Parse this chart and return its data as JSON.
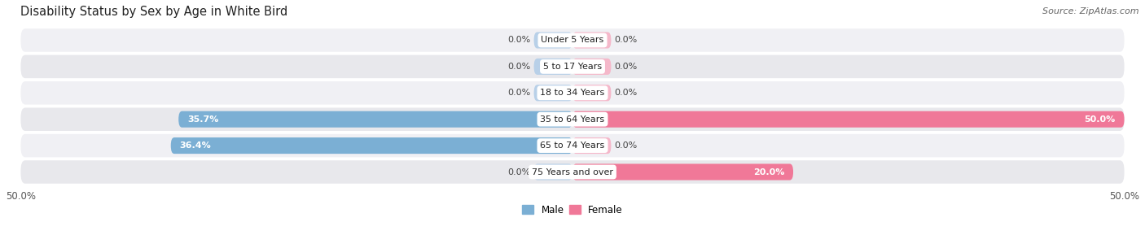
{
  "title": "Disability Status by Sex by Age in White Bird",
  "source": "Source: ZipAtlas.com",
  "categories": [
    "Under 5 Years",
    "5 to 17 Years",
    "18 to 34 Years",
    "35 to 64 Years",
    "65 to 74 Years",
    "75 Years and over"
  ],
  "male_values": [
    0.0,
    0.0,
    0.0,
    35.7,
    36.4,
    0.0
  ],
  "female_values": [
    0.0,
    0.0,
    0.0,
    50.0,
    0.0,
    20.0
  ],
  "x_min": -50.0,
  "x_max": 50.0,
  "male_color": "#7bafd4",
  "female_color": "#f07898",
  "male_color_light": "#b8d0e8",
  "female_color_light": "#f5b8ca",
  "row_bg_color": "#e8e8ec",
  "row_bg_color2": "#f0f0f4",
  "bar_height": 0.62,
  "title_fontsize": 10.5,
  "label_fontsize": 8.0,
  "tick_fontsize": 8.5,
  "source_fontsize": 8,
  "zero_stub": 3.5
}
